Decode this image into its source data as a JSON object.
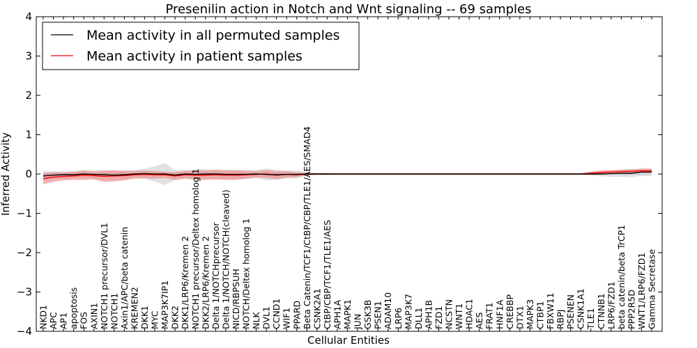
{
  "chart_data": {
    "type": "line",
    "title": "Presenilin action in Notch and Wnt signaling -- 69 samples",
    "xlabel": "Cellular Entities",
    "ylabel": "Inferred Activity",
    "ylim": [
      -4,
      4
    ],
    "yticks": [
      "−4",
      "−3",
      "−2",
      "−1",
      "0",
      "1",
      "2",
      "3",
      "4"
    ],
    "legend_position": "top-left",
    "categories": [
      "NKD1",
      "APC",
      "AP1",
      "apoptosis",
      "FOS",
      "AXIN1",
      "NOTCH1 precursor/DVL1",
      "NOTCH1",
      "Axin1/APC/beta catenin",
      "KREMEN2",
      "DKK1",
      "MYC",
      "MAP3K7IP1",
      "DKK2",
      "DKK1/LRP6/Kremen 2",
      "NOTCH1 precursor/Deltex homolog 1",
      "DKK2/LRP6/Kremen 2",
      "Delta 1/NOTCHprecursor",
      "Delta 1/NOTCH/NOTCH(cleaved)",
      "NICD/RBPSUH",
      "NOTCH/Deltex homolog 1",
      "NLK",
      "DVL1",
      "CCND1",
      "WIF1",
      "PPARD",
      "Beta Catenin/TCF1/CtBP/CBP/TLE1/AES/SMAD4",
      "CSNK2A1",
      "CtBP/CBP/TCF1/TLE1/AES",
      "APH1A",
      "MAPK1",
      "JUN",
      "GSK3B",
      "PSEN1",
      "ADAM10",
      "LRP6",
      "MAP3K7",
      "DLL1",
      "APH1B",
      "FZD1",
      "NCSTN",
      "WNT1",
      "HDAC1",
      "AES",
      "FRAT1",
      "HNF1A",
      "CREBBP",
      "DTX1",
      "MAPK3",
      "CTBP1",
      "FBXW11",
      "RBPJ",
      "PSENEN",
      "CSNK1A1",
      "TLE1",
      "CTNNB1",
      "LRP6/FZD1",
      "beta catenin/beta TrCP1",
      "PPP2R5D",
      "WNT1/LRP6/FZD1",
      "Gamma Secretase"
    ],
    "series": [
      {
        "name": "Mean activity in all permuted samples",
        "color": "#000000",
        "values": [
          -0.05,
          -0.03,
          -0.02,
          -0.02,
          0.0,
          -0.01,
          -0.02,
          -0.03,
          -0.02,
          0.0,
          0.01,
          0.0,
          0.0,
          -0.03,
          0.0,
          -0.01,
          0.0,
          0.0,
          -0.01,
          -0.01,
          -0.01,
          0.0,
          -0.01,
          -0.02,
          -0.01,
          -0.01,
          0.0,
          0.0,
          0.0,
          0.0,
          0.0,
          0.0,
          0.0,
          0.0,
          0.0,
          0.0,
          0.0,
          0.0,
          0.0,
          0.0,
          0.0,
          0.0,
          0.0,
          0.0,
          0.0,
          0.0,
          0.0,
          0.0,
          0.0,
          0.0,
          0.0,
          0.0,
          0.0,
          0.0,
          0.0,
          0.0,
          0.01,
          0.02,
          0.02,
          0.05,
          0.05
        ],
        "band": [
          0.12,
          0.1,
          0.1,
          0.1,
          0.1,
          0.11,
          0.12,
          0.12,
          0.11,
          0.1,
          0.12,
          0.2,
          0.28,
          0.12,
          0.1,
          0.12,
          0.12,
          0.12,
          0.12,
          0.12,
          0.12,
          0.1,
          0.15,
          0.13,
          0.1,
          0.1,
          0.04,
          0.03,
          0.03,
          0.02,
          0.02,
          0.02,
          0.02,
          0.02,
          0.02,
          0.02,
          0.02,
          0.02,
          0.02,
          0.02,
          0.02,
          0.02,
          0.02,
          0.02,
          0.02,
          0.02,
          0.02,
          0.02,
          0.02,
          0.02,
          0.02,
          0.02,
          0.02,
          0.02,
          0.04,
          0.06,
          0.08,
          0.09,
          0.1,
          0.1,
          0.1
        ]
      },
      {
        "name": "Mean activity in patient samples",
        "color": "#ff0000",
        "values": [
          -0.12,
          -0.08,
          -0.06,
          -0.05,
          -0.03,
          -0.04,
          -0.06,
          -0.05,
          -0.04,
          -0.02,
          -0.01,
          -0.02,
          -0.02,
          -0.05,
          -0.02,
          -0.03,
          -0.03,
          -0.02,
          -0.03,
          -0.03,
          -0.02,
          -0.01,
          0.0,
          -0.03,
          -0.01,
          -0.02,
          0.0,
          0.0,
          0.0,
          0.0,
          0.0,
          0.0,
          0.0,
          0.0,
          0.0,
          0.0,
          0.0,
          0.0,
          0.0,
          0.0,
          0.0,
          0.0,
          0.0,
          0.0,
          0.0,
          0.0,
          0.0,
          0.0,
          0.0,
          0.0,
          0.0,
          0.0,
          0.0,
          0.0,
          0.02,
          0.04,
          0.05,
          0.06,
          0.07,
          0.08,
          0.08
        ],
        "band": [
          0.14,
          0.12,
          0.1,
          0.1,
          0.12,
          0.1,
          0.14,
          0.14,
          0.12,
          0.1,
          0.1,
          0.1,
          0.08,
          0.1,
          0.1,
          0.12,
          0.12,
          0.12,
          0.12,
          0.12,
          0.1,
          0.08,
          0.1,
          0.1,
          0.08,
          0.06,
          0.03,
          0.02,
          0.02,
          0.02,
          0.02,
          0.02,
          0.02,
          0.02,
          0.02,
          0.02,
          0.02,
          0.02,
          0.02,
          0.02,
          0.02,
          0.02,
          0.02,
          0.02,
          0.02,
          0.02,
          0.02,
          0.02,
          0.02,
          0.02,
          0.02,
          0.02,
          0.02,
          0.02,
          0.04,
          0.05,
          0.05,
          0.05,
          0.05,
          0.05,
          0.05
        ]
      }
    ]
  }
}
